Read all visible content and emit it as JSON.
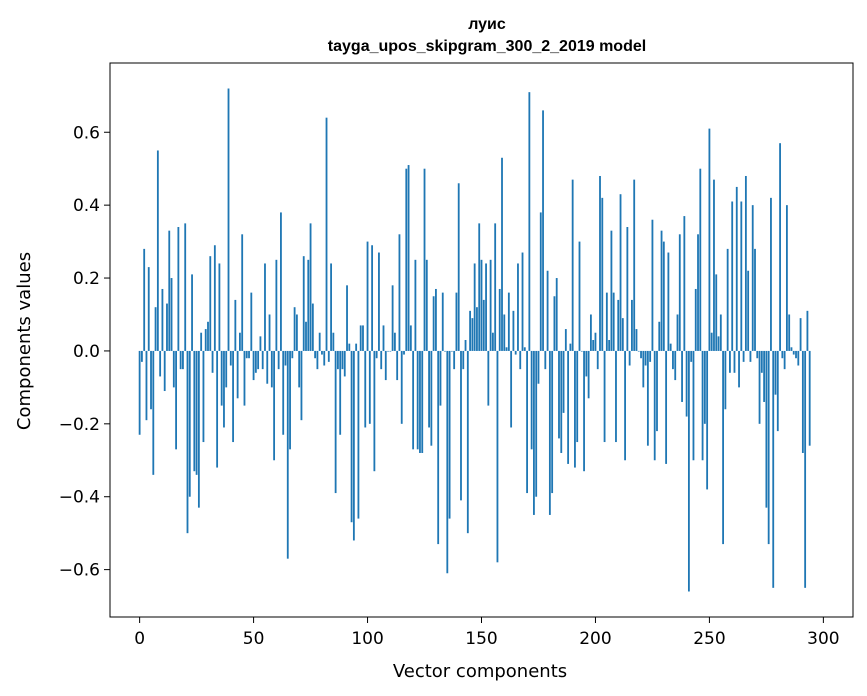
{
  "chart_data": {
    "type": "bar",
    "title": "луис",
    "subtitle": "tayga_upos_skipgram_300_2_2019 model",
    "xlabel": "Vector components",
    "ylabel": "Components values",
    "xlim": [
      -13,
      313
    ],
    "ylim": [
      -0.73,
      0.79
    ],
    "xticks": [
      0,
      50,
      100,
      150,
      200,
      250,
      300
    ],
    "yticks": [
      -0.6,
      -0.4,
      -0.2,
      0.0,
      0.2,
      0.4,
      0.6
    ],
    "ytick_labels": [
      "−0.6",
      "−0.4",
      "−0.2",
      "0.0",
      "0.2",
      "0.4",
      "0.6"
    ],
    "grid": false,
    "color": "#1f77b4",
    "values": [
      -0.23,
      -0.03,
      0.28,
      -0.19,
      0.23,
      -0.16,
      -0.34,
      0.12,
      0.55,
      -0.07,
      0.17,
      -0.11,
      0.13,
      0.33,
      0.2,
      -0.1,
      -0.27,
      0.34,
      -0.05,
      -0.05,
      0.35,
      -0.5,
      -0.4,
      0.21,
      -0.33,
      -0.34,
      -0.43,
      0.05,
      -0.25,
      0.06,
      0.08,
      0.26,
      -0.06,
      0.29,
      -0.32,
      0.24,
      -0.15,
      -0.21,
      -0.1,
      0.72,
      -0.04,
      -0.25,
      0.14,
      -0.13,
      0.05,
      0.32,
      -0.15,
      -0.02,
      -0.02,
      0.16,
      -0.08,
      -0.06,
      -0.05,
      0.04,
      -0.05,
      0.24,
      -0.09,
      0.1,
      -0.1,
      -0.3,
      0.25,
      -0.05,
      0.38,
      -0.23,
      -0.04,
      -0.57,
      -0.27,
      -0.02,
      0.12,
      0.1,
      -0.1,
      -0.19,
      0.26,
      0.08,
      0.25,
      0.35,
      0.13,
      -0.02,
      -0.05,
      0.05,
      -0.01,
      -0.04,
      0.64,
      -0.03,
      0.24,
      0.05,
      -0.39,
      -0.05,
      -0.23,
      -0.05,
      -0.07,
      0.18,
      0.02,
      -0.47,
      -0.52,
      0.02,
      -0.46,
      0.07,
      0.07,
      -0.21,
      0.3,
      -0.2,
      0.29,
      -0.33,
      -0.02,
      0.27,
      -0.05,
      0.07,
      -0.08,
      0.0,
      0.0,
      0.18,
      0.05,
      -0.08,
      0.32,
      -0.2,
      -0.01,
      0.5,
      0.51,
      0.07,
      -0.27,
      0.25,
      -0.27,
      -0.28,
      -0.28,
      0.5,
      0.25,
      -0.21,
      -0.26,
      0.15,
      0.17,
      -0.53,
      -0.15,
      0.16,
      0.0,
      -0.61,
      -0.46,
      0.0,
      -0.05,
      0.16,
      0.46,
      -0.41,
      -0.05,
      0.03,
      -0.5,
      0.11,
      0.09,
      0.24,
      0.12,
      0.35,
      0.25,
      0.14,
      0.24,
      -0.15,
      0.25,
      0.05,
      0.35,
      -0.58,
      0.17,
      0.53,
      0.1,
      0.01,
      0.16,
      -0.21,
      0.11,
      -0.01,
      0.24,
      -0.05,
      0.27,
      0.01,
      -0.39,
      0.71,
      -0.27,
      -0.45,
      -0.4,
      -0.09,
      0.38,
      0.66,
      -0.05,
      0.22,
      -0.45,
      -0.39,
      0.15,
      0.2,
      -0.24,
      -0.28,
      -0.17,
      0.06,
      -0.31,
      0.02,
      0.47,
      -0.32,
      -0.25,
      0.3,
      0.0,
      -0.33,
      -0.07,
      -0.13,
      0.1,
      0.03,
      0.05,
      -0.05,
      0.48,
      0.42,
      -0.25,
      0.16,
      0.03,
      0.33,
      0.16,
      -0.25,
      0.14,
      0.43,
      0.09,
      -0.3,
      0.34,
      -0.04,
      0.14,
      0.47,
      0.06,
      0.0,
      -0.02,
      -0.1,
      -0.04,
      -0.26,
      -0.03,
      0.36,
      -0.3,
      -0.22,
      0.08,
      0.33,
      0.3,
      -0.31,
      0.27,
      0.02,
      -0.05,
      -0.08,
      0.1,
      0.32,
      -0.14,
      0.37,
      -0.18,
      -0.66,
      -0.03,
      -0.3,
      0.17,
      0.32,
      0.5,
      -0.3,
      -0.2,
      -0.38,
      0.61,
      0.05,
      0.47,
      0.21,
      0.04,
      0.1,
      -0.53,
      -0.16,
      0.28,
      -0.06,
      0.41,
      -0.06,
      0.45,
      -0.1,
      0.41,
      -0.03,
      0.48,
      0.22,
      -0.03,
      0.4,
      0.28,
      -0.02,
      -0.2,
      -0.06,
      -0.14,
      -0.43,
      -0.53,
      0.42,
      -0.65,
      -0.12,
      -0.22,
      0.57,
      -0.02,
      -0.05,
      0.4,
      0.1,
      0.01,
      -0.01,
      -0.02,
      -0.04,
      0.09,
      -0.28,
      -0.65,
      0.11,
      -0.26
    ]
  }
}
